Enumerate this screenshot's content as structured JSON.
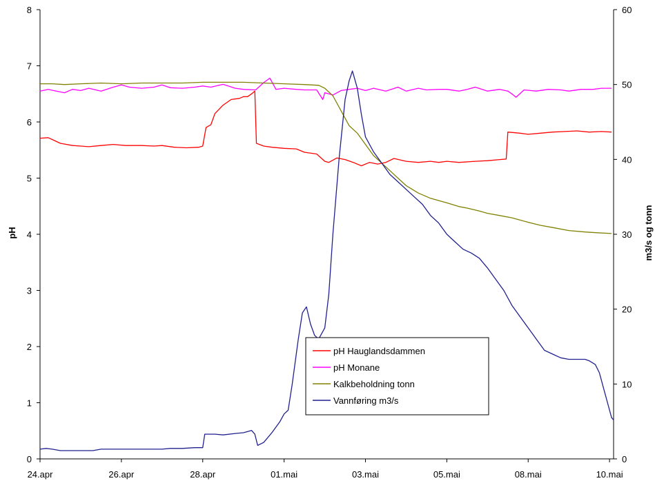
{
  "chart_data": {
    "type": "line",
    "title": "",
    "xlabel": "",
    "ylabel_left": "pH",
    "ylabel_right": "m3/s og tonn",
    "ylim_left": [
      0,
      8
    ],
    "ylim_right": [
      0,
      60
    ],
    "yticks_left": [
      "0",
      "1",
      "2",
      "3",
      "4",
      "5",
      "6",
      "7",
      "8"
    ],
    "yticks_right": [
      "0",
      "10",
      "20",
      "30",
      "40",
      "50",
      "60"
    ],
    "x_ticks": [
      {
        "label": "24.apr",
        "day": 0
      },
      {
        "label": "26.apr",
        "day": 2
      },
      {
        "label": "28.apr",
        "day": 4
      },
      {
        "label": "01.mai",
        "day": 6
      },
      {
        "label": "03.mai",
        "day": 8
      },
      {
        "label": "05.mai",
        "day": 10
      },
      {
        "label": "08.mai",
        "day": 12
      },
      {
        "label": "10.mai",
        "day": 14
      }
    ],
    "xlim": [
      0,
      14.1
    ],
    "grid": false,
    "legend": "bottom-center",
    "series": [
      {
        "name": "pH Hauglandsdammen",
        "color": "#ff0000",
        "axis": "left",
        "points": [
          [
            0,
            5.71
          ],
          [
            0.2,
            5.72
          ],
          [
            0.35,
            5.67
          ],
          [
            0.5,
            5.62
          ],
          [
            0.8,
            5.58
          ],
          [
            1.0,
            5.57
          ],
          [
            1.2,
            5.56
          ],
          [
            1.5,
            5.58
          ],
          [
            1.8,
            5.6
          ],
          [
            2.1,
            5.58
          ],
          [
            2.5,
            5.58
          ],
          [
            2.8,
            5.57
          ],
          [
            3.0,
            5.58
          ],
          [
            3.3,
            5.55
          ],
          [
            3.6,
            5.54
          ],
          [
            3.9,
            5.55
          ],
          [
            4.0,
            5.57
          ],
          [
            4.08,
            5.9
          ],
          [
            4.2,
            5.95
          ],
          [
            4.3,
            6.15
          ],
          [
            4.5,
            6.3
          ],
          [
            4.7,
            6.4
          ],
          [
            4.9,
            6.42
          ],
          [
            5.0,
            6.45
          ],
          [
            5.1,
            6.45
          ],
          [
            5.2,
            6.5
          ],
          [
            5.28,
            6.55
          ],
          [
            5.32,
            5.62
          ],
          [
            5.5,
            5.57
          ],
          [
            5.7,
            5.55
          ],
          [
            6.0,
            5.53
          ],
          [
            6.3,
            5.52
          ],
          [
            6.5,
            5.46
          ],
          [
            6.8,
            5.43
          ],
          [
            7.0,
            5.3
          ],
          [
            7.1,
            5.28
          ],
          [
            7.3,
            5.36
          ],
          [
            7.5,
            5.33
          ],
          [
            7.7,
            5.28
          ],
          [
            7.9,
            5.22
          ],
          [
            8.1,
            5.28
          ],
          [
            8.3,
            5.25
          ],
          [
            8.5,
            5.28
          ],
          [
            8.7,
            5.35
          ],
          [
            9.0,
            5.3
          ],
          [
            9.3,
            5.28
          ],
          [
            9.6,
            5.3
          ],
          [
            9.8,
            5.28
          ],
          [
            10.0,
            5.3
          ],
          [
            10.3,
            5.28
          ],
          [
            10.7,
            5.3
          ],
          [
            11.0,
            5.31
          ],
          [
            11.3,
            5.33
          ],
          [
            11.46,
            5.34
          ],
          [
            11.5,
            5.82
          ],
          [
            11.8,
            5.8
          ],
          [
            12.0,
            5.78
          ],
          [
            12.3,
            5.8
          ],
          [
            12.6,
            5.82
          ],
          [
            12.9,
            5.83
          ],
          [
            13.2,
            5.84
          ],
          [
            13.5,
            5.82
          ],
          [
            13.8,
            5.83
          ],
          [
            14.05,
            5.82
          ]
        ]
      },
      {
        "name": "pH Monane",
        "color": "#ff00ff",
        "axis": "left",
        "points": [
          [
            0,
            6.55
          ],
          [
            0.2,
            6.58
          ],
          [
            0.4,
            6.55
          ],
          [
            0.6,
            6.52
          ],
          [
            0.8,
            6.58
          ],
          [
            1.0,
            6.56
          ],
          [
            1.2,
            6.6
          ],
          [
            1.5,
            6.55
          ],
          [
            1.8,
            6.62
          ],
          [
            2.0,
            6.66
          ],
          [
            2.2,
            6.62
          ],
          [
            2.5,
            6.6
          ],
          [
            2.8,
            6.62
          ],
          [
            3.0,
            6.66
          ],
          [
            3.2,
            6.61
          ],
          [
            3.5,
            6.6
          ],
          [
            3.8,
            6.62
          ],
          [
            4.0,
            6.64
          ],
          [
            4.2,
            6.62
          ],
          [
            4.5,
            6.67
          ],
          [
            4.8,
            6.6
          ],
          [
            5.0,
            6.58
          ],
          [
            5.3,
            6.57
          ],
          [
            5.5,
            6.7
          ],
          [
            5.65,
            6.78
          ],
          [
            5.8,
            6.58
          ],
          [
            6.0,
            6.6
          ],
          [
            6.3,
            6.58
          ],
          [
            6.5,
            6.57
          ],
          [
            6.8,
            6.57
          ],
          [
            6.95,
            6.4
          ],
          [
            7.0,
            6.52
          ],
          [
            7.2,
            6.48
          ],
          [
            7.4,
            6.56
          ],
          [
            7.6,
            6.58
          ],
          [
            7.8,
            6.6
          ],
          [
            8.0,
            6.56
          ],
          [
            8.2,
            6.6
          ],
          [
            8.5,
            6.55
          ],
          [
            8.8,
            6.62
          ],
          [
            9.0,
            6.55
          ],
          [
            9.3,
            6.6
          ],
          [
            9.5,
            6.57
          ],
          [
            9.8,
            6.58
          ],
          [
            10.0,
            6.58
          ],
          [
            10.3,
            6.55
          ],
          [
            10.5,
            6.58
          ],
          [
            10.7,
            6.62
          ],
          [
            11.0,
            6.55
          ],
          [
            11.3,
            6.58
          ],
          [
            11.5,
            6.55
          ],
          [
            11.6,
            6.5
          ],
          [
            11.7,
            6.44
          ],
          [
            11.9,
            6.57
          ],
          [
            12.2,
            6.55
          ],
          [
            12.5,
            6.58
          ],
          [
            12.8,
            6.57
          ],
          [
            13.0,
            6.55
          ],
          [
            13.3,
            6.58
          ],
          [
            13.6,
            6.58
          ],
          [
            13.8,
            6.6
          ],
          [
            14.05,
            6.6
          ]
        ]
      },
      {
        "name": "Kalkbeholdning tonn",
        "color": "#808000",
        "axis": "right",
        "points": [
          [
            0,
            50.1
          ],
          [
            0.3,
            50.1
          ],
          [
            0.6,
            50
          ],
          [
            1.0,
            50.1
          ],
          [
            1.5,
            50.2
          ],
          [
            2.0,
            50.1
          ],
          [
            2.5,
            50.2
          ],
          [
            3.0,
            50.2
          ],
          [
            3.5,
            50.2
          ],
          [
            4.0,
            50.3
          ],
          [
            4.5,
            50.3
          ],
          [
            5.0,
            50.3
          ],
          [
            5.5,
            50.2
          ],
          [
            6.0,
            50.1
          ],
          [
            6.5,
            50.0
          ],
          [
            6.85,
            49.9
          ],
          [
            7.0,
            49.5
          ],
          [
            7.2,
            48.5
          ],
          [
            7.4,
            46.5
          ],
          [
            7.6,
            44.5
          ],
          [
            7.8,
            43.5
          ],
          [
            8.0,
            42.0
          ],
          [
            8.2,
            40.5
          ],
          [
            8.5,
            39.0
          ],
          [
            8.8,
            37.5
          ],
          [
            9.0,
            36.5
          ],
          [
            9.3,
            35.5
          ],
          [
            9.6,
            34.8
          ],
          [
            10.0,
            34.2
          ],
          [
            10.3,
            33.7
          ],
          [
            10.5,
            33.5
          ],
          [
            10.8,
            33.1
          ],
          [
            11.0,
            32.8
          ],
          [
            11.3,
            32.5
          ],
          [
            11.6,
            32.2
          ],
          [
            11.8,
            31.9
          ],
          [
            12.0,
            31.6
          ],
          [
            12.3,
            31.2
          ],
          [
            12.6,
            30.9
          ],
          [
            13.0,
            30.5
          ],
          [
            13.4,
            30.3
          ],
          [
            13.7,
            30.2
          ],
          [
            14.05,
            30.1
          ]
        ]
      },
      {
        "name": "Vannføring m3/s",
        "color": "#1f1f8f",
        "axis": "right",
        "points": [
          [
            0,
            1.3
          ],
          [
            0.15,
            1.4
          ],
          [
            0.3,
            1.3
          ],
          [
            0.5,
            1.1
          ],
          [
            0.8,
            1.1
          ],
          [
            1.0,
            1.1
          ],
          [
            1.3,
            1.1
          ],
          [
            1.5,
            1.3
          ],
          [
            2.0,
            1.3
          ],
          [
            2.5,
            1.3
          ],
          [
            3.0,
            1.3
          ],
          [
            3.2,
            1.4
          ],
          [
            3.5,
            1.4
          ],
          [
            3.8,
            1.5
          ],
          [
            4.0,
            1.5
          ],
          [
            4.05,
            3.3
          ],
          [
            4.3,
            3.3
          ],
          [
            4.5,
            3.2
          ],
          [
            4.8,
            3.4
          ],
          [
            5.0,
            3.5
          ],
          [
            5.2,
            3.8
          ],
          [
            5.28,
            3.3
          ],
          [
            5.35,
            1.8
          ],
          [
            5.5,
            2.2
          ],
          [
            5.7,
            3.5
          ],
          [
            5.9,
            5.0
          ],
          [
            6.0,
            6.0
          ],
          [
            6.1,
            6.5
          ],
          [
            6.2,
            10.0
          ],
          [
            6.35,
            16.0
          ],
          [
            6.45,
            19.5
          ],
          [
            6.55,
            20.3
          ],
          [
            6.65,
            18.0
          ],
          [
            6.75,
            16.5
          ],
          [
            6.85,
            16.0
          ],
          [
            7.0,
            17.5
          ],
          [
            7.1,
            22.0
          ],
          [
            7.2,
            30.0
          ],
          [
            7.35,
            40.0
          ],
          [
            7.5,
            48.0
          ],
          [
            7.6,
            50.5
          ],
          [
            7.68,
            51.8
          ],
          [
            7.8,
            49.5
          ],
          [
            7.9,
            46.0
          ],
          [
            8.0,
            43.0
          ],
          [
            8.2,
            41.0
          ],
          [
            8.4,
            39.5
          ],
          [
            8.6,
            38.0
          ],
          [
            8.8,
            37.0
          ],
          [
            9.0,
            36.0
          ],
          [
            9.2,
            35.0
          ],
          [
            9.4,
            34.0
          ],
          [
            9.6,
            32.5
          ],
          [
            9.8,
            31.5
          ],
          [
            10.0,
            30.0
          ],
          [
            10.2,
            29.0
          ],
          [
            10.4,
            28.0
          ],
          [
            10.6,
            27.5
          ],
          [
            10.8,
            26.8
          ],
          [
            11.0,
            25.5
          ],
          [
            11.2,
            24.0
          ],
          [
            11.4,
            22.5
          ],
          [
            11.6,
            20.5
          ],
          [
            11.8,
            19.0
          ],
          [
            12.0,
            17.5
          ],
          [
            12.2,
            16.0
          ],
          [
            12.4,
            14.5
          ],
          [
            12.6,
            14.0
          ],
          [
            12.8,
            13.5
          ],
          [
            13.0,
            13.3
          ],
          [
            13.2,
            13.3
          ],
          [
            13.4,
            13.3
          ],
          [
            13.5,
            13.1
          ],
          [
            13.65,
            12.6
          ],
          [
            13.75,
            11.5
          ],
          [
            13.85,
            9.5
          ],
          [
            13.95,
            7.5
          ],
          [
            14.05,
            5.5
          ],
          [
            14.1,
            5.2
          ]
        ]
      }
    ]
  }
}
